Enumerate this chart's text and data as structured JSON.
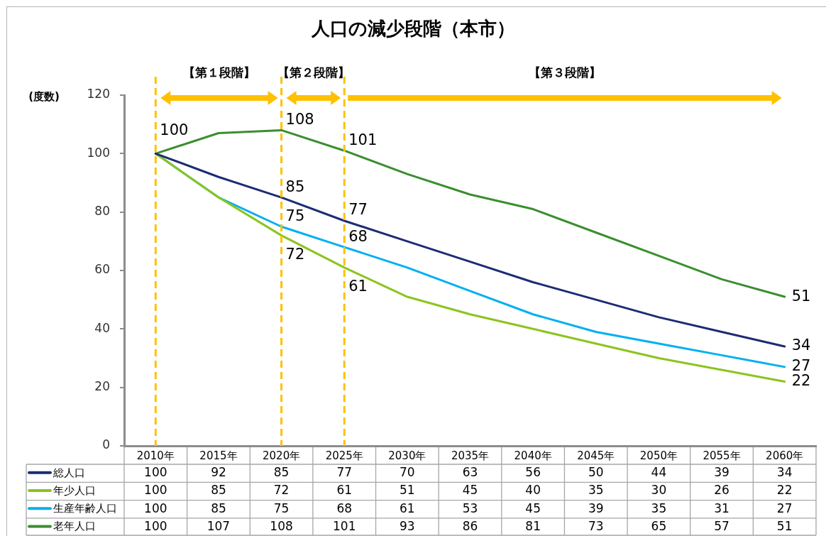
{
  "chart_data": {
    "type": "line",
    "title": "人口の減少段階（本市）",
    "ylabel": "(度数)",
    "categories": [
      "2010年",
      "2015年",
      "2020年",
      "2025年",
      "2030年",
      "2035年",
      "2040年",
      "2045年",
      "2050年",
      "2055年",
      "2060年"
    ],
    "series": [
      {
        "name": "総人口",
        "color": "#1c2c74",
        "values": [
          100,
          92,
          85,
          77,
          70,
          63,
          56,
          50,
          44,
          39,
          34
        ]
      },
      {
        "name": "年少人口",
        "color": "#8cc41e",
        "values": [
          100,
          85,
          72,
          61,
          51,
          45,
          40,
          35,
          30,
          26,
          22
        ]
      },
      {
        "name": "生産年齢人口",
        "color": "#00b0f0",
        "values": [
          100,
          85,
          75,
          68,
          61,
          53,
          45,
          39,
          35,
          31,
          27
        ]
      },
      {
        "name": "老年人口",
        "color": "#3b8e2f",
        "values": [
          100,
          107,
          108,
          101,
          93,
          86,
          81,
          73,
          65,
          57,
          51
        ]
      }
    ],
    "ylim": [
      0,
      120
    ],
    "yticks": [
      0,
      20,
      40,
      60,
      80,
      100,
      120
    ],
    "grid": false,
    "legend": "bottom",
    "marker": "none",
    "data_labels": true,
    "ref_lines": [
      {
        "axis": "x",
        "value": "2010年",
        "color": "#ffc000",
        "line_style": "dashed"
      },
      {
        "axis": "x",
        "value": "2020年",
        "color": "#ffc000",
        "line_style": "dashed"
      },
      {
        "axis": "x",
        "value": "2025年",
        "color": "#ffc000",
        "line_style": "dashed"
      }
    ],
    "annotations": [
      "【第１段階】",
      "【第２段階】",
      "【第３段階】",
      {
        "text": "100",
        "x": "2010年",
        "y": 100
      },
      {
        "text": "108",
        "x": "2020年",
        "y": 108
      },
      {
        "text": "101",
        "x": "2025年",
        "y": 101
      },
      {
        "text": "85",
        "x": "2020年",
        "y": 85
      },
      {
        "text": "77",
        "x": "2025年",
        "y": 77
      },
      {
        "text": "75",
        "x": "2020年",
        "y": 75
      },
      {
        "text": "68",
        "x": "2025年",
        "y": 68
      },
      {
        "text": "72",
        "x": "2020年",
        "y": 72
      },
      {
        "text": "61",
        "x": "2025年",
        "y": 61
      },
      {
        "text": "51",
        "x": "2060年",
        "y": 51
      },
      {
        "text": "34",
        "x": "2060年",
        "y": 34
      },
      {
        "text": "27",
        "x": "2060年",
        "y": 27
      },
      {
        "text": "22",
        "x": "2060年",
        "y": 22
      }
    ]
  }
}
